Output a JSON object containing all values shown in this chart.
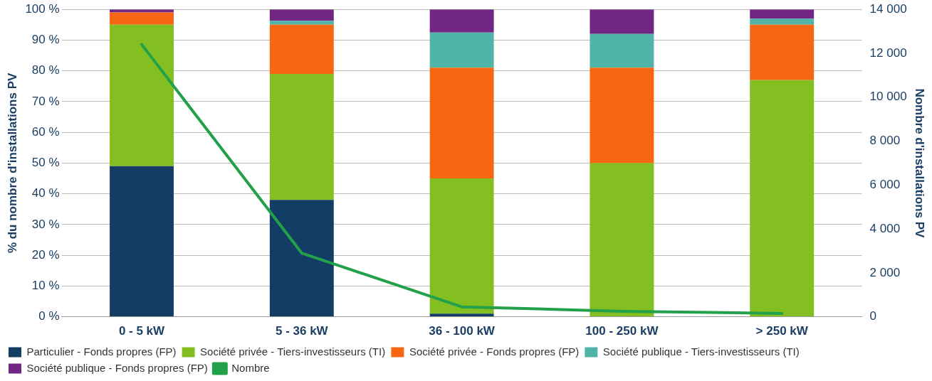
{
  "chart_data": {
    "type": "bar",
    "stacked": true,
    "categories": [
      "0 - 5 kW",
      "5 - 36 kW",
      "36 - 100 kW",
      "100 - 250 kW",
      "> 250 kW"
    ],
    "ylabel": "% du nombre d'installations PV",
    "y2label": "Nombre d'installations PV",
    "ylim": [
      0,
      100
    ],
    "yticks": [
      {
        "value": 0,
        "label": "0 %"
      },
      {
        "value": 10,
        "label": "10 %"
      },
      {
        "value": 20,
        "label": "20 %"
      },
      {
        "value": 30,
        "label": "30 %"
      },
      {
        "value": 40,
        "label": "40 %"
      },
      {
        "value": 50,
        "label": "50 %"
      },
      {
        "value": 60,
        "label": "60 %"
      },
      {
        "value": 70,
        "label": "70 %"
      },
      {
        "value": 80,
        "label": "80 %"
      },
      {
        "value": 90,
        "label": "90 %"
      },
      {
        "value": 100,
        "label": "100 %"
      }
    ],
    "y2lim": [
      0,
      14000
    ],
    "y2ticks": [
      {
        "value": 0,
        "label": "0"
      },
      {
        "value": 2000,
        "label": "2 000"
      },
      {
        "value": 4000,
        "label": "4 000"
      },
      {
        "value": 6000,
        "label": "6 000"
      },
      {
        "value": 8000,
        "label": "8 000"
      },
      {
        "value": 10000,
        "label": "10 000"
      },
      {
        "value": 12000,
        "label": "12 000"
      },
      {
        "value": 14000,
        "label": "14 000"
      }
    ],
    "grid": "y",
    "legend": "bottom",
    "series": [
      {
        "name": "Particulier - Fonds propres (FP)",
        "color": "#143d66",
        "values": [
          49,
          38,
          1,
          0,
          0
        ]
      },
      {
        "name": "Société privée - Tiers-investisseurs (TI)",
        "color": "#84bf22",
        "values": [
          46,
          41,
          44,
          50,
          77
        ]
      },
      {
        "name": "Société privée - Fonds propres (FP)",
        "color": "#f76713",
        "values": [
          4,
          16,
          36,
          31,
          18
        ]
      },
      {
        "name": "Société publique - Tiers-investisseurs (TI)",
        "color": "#50b4a8",
        "values": [
          null,
          1.3,
          11.5,
          11,
          2
        ]
      },
      {
        "name": "Société publique - Fonds propres (FP)",
        "color": "#722683",
        "values": [
          1,
          3.7,
          7.5,
          8,
          3
        ]
      },
      {
        "name": "Nombre",
        "type": "line",
        "axis": "y2",
        "color": "#22a04a",
        "values": [
          12400,
          2900,
          450,
          250,
          150
        ]
      }
    ]
  }
}
